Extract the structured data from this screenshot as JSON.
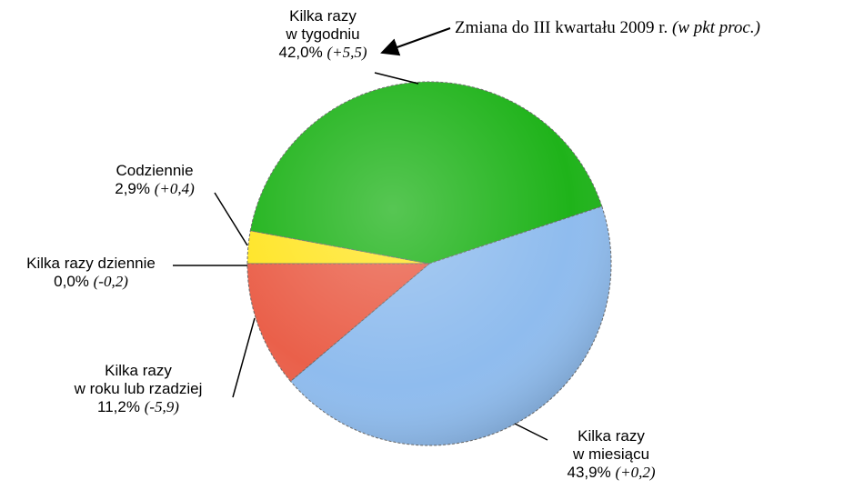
{
  "chart_data": {
    "type": "pie",
    "annotation": "Zmiana do III kwartału 2009 r.",
    "annotation_note": "(w pkt proc.)",
    "categories": [
      "Kilka razy dziennie",
      "Codziennie",
      "Kilka razy\nw tygodniu",
      "Kilka razy\nw miesiącu",
      "Kilka razy\nw roku lub rzadziej"
    ],
    "values": [
      0.0,
      2.9,
      42.0,
      43.9,
      11.2
    ],
    "value_labels": [
      "0,0%",
      "2,9%",
      "42,0%",
      "43,9%",
      "11,2%"
    ],
    "changes": [
      -0.2,
      0.4,
      5.5,
      0.2,
      -5.9
    ],
    "change_labels": [
      "(-0,2)",
      "(+0,4)",
      "(+5,5)",
      "(+0,2)",
      "(-5,9)"
    ],
    "colors": [
      "#9a9a9a",
      "#ffe526",
      "#1fb31a",
      "#8fbcee",
      "#ea604a"
    ]
  }
}
